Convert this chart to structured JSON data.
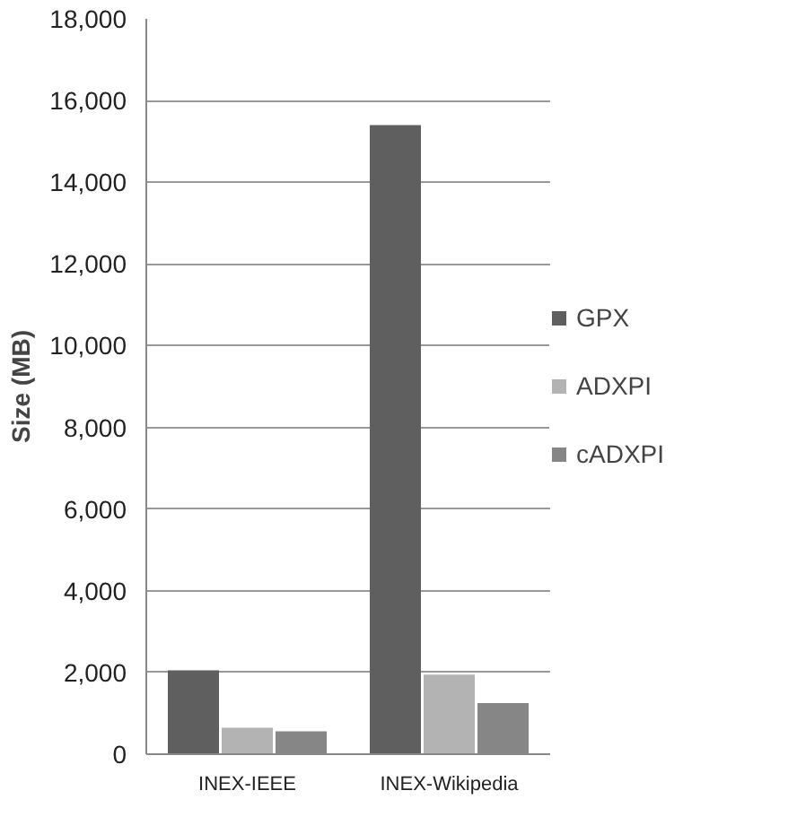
{
  "chart_data": {
    "type": "bar",
    "ylabel": "Size (MB)",
    "categories": [
      "INEX-IEEE",
      "INEX-Wikipedia"
    ],
    "series": [
      {
        "name": "GPX",
        "color": "#5f5f5f",
        "values": [
          2050,
          15400
        ]
      },
      {
        "name": "ADXPI",
        "color": "#b3b3b3",
        "values": [
          650,
          1950
        ]
      },
      {
        "name": "cADXPI",
        "color": "#868686",
        "values": [
          560,
          1250
        ]
      }
    ],
    "ylim": [
      0,
      18000
    ],
    "yticks": [
      {
        "value": 0,
        "label": "0"
      },
      {
        "value": 2000,
        "label": "2,000"
      },
      {
        "value": 4000,
        "label": "4,000"
      },
      {
        "value": 6000,
        "label": "6,000"
      },
      {
        "value": 8000,
        "label": "8,000"
      },
      {
        "value": 10000,
        "label": "10,000"
      },
      {
        "value": 12000,
        "label": "12,000"
      },
      {
        "value": 14000,
        "label": "14,000"
      },
      {
        "value": 16000,
        "label": "16,000"
      },
      {
        "value": 18000,
        "label": "18,000"
      }
    ],
    "grid": "y",
    "legend": "right"
  }
}
